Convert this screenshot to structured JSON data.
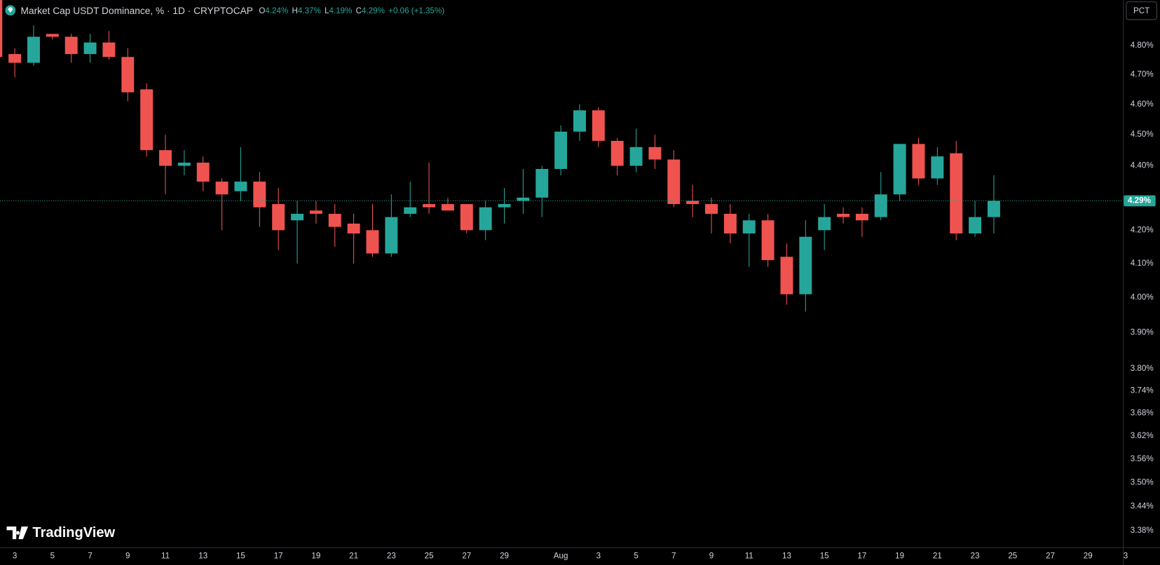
{
  "header": {
    "title": "Market Cap USDT Dominance, % · 1D · CRYPTOCAP",
    "ohlc": [
      {
        "key": "O",
        "value": "4.24%"
      },
      {
        "key": "H",
        "value": "4.37%"
      },
      {
        "key": "L",
        "value": "4.19%"
      },
      {
        "key": "C",
        "value": "4.29%"
      }
    ],
    "change": "+0.06 (+1.35%)"
  },
  "scale_button": "PCT",
  "watermark": "TradingView",
  "chart_data": {
    "type": "candlestick",
    "categories": [
      null,
      "3",
      null,
      "5",
      null,
      "7",
      null,
      "9",
      null,
      "11",
      null,
      "13",
      null,
      "15",
      null,
      "17",
      null,
      "19",
      null,
      "21",
      null,
      "23",
      null,
      "25",
      null,
      "27",
      null,
      "29",
      null,
      null,
      "Aug",
      null,
      "3",
      null,
      "5",
      null,
      "7",
      null,
      "9",
      null,
      "11",
      null,
      "13",
      null,
      "15",
      null,
      "17",
      null,
      "19",
      null,
      "21",
      null,
      "23",
      null,
      "25",
      null,
      "27",
      null,
      "29",
      null,
      "3"
    ],
    "open": [
      4.96,
      4.77,
      4.74,
      4.84,
      4.83,
      4.77,
      4.81,
      4.76,
      4.65,
      4.45,
      4.4,
      4.41,
      4.35,
      4.32,
      4.35,
      4.28,
      4.23,
      4.26,
      4.25,
      4.22,
      4.2,
      4.13,
      4.25,
      4.28,
      4.28,
      4.28,
      4.2,
      4.27,
      4.29,
      4.3,
      4.39,
      4.51,
      4.58,
      4.48,
      4.4,
      4.46,
      4.42,
      4.29,
      4.28,
      4.25,
      4.19,
      4.23,
      4.12,
      4.01,
      4.2,
      4.25,
      4.25,
      4.24,
      4.31,
      4.47,
      4.36,
      4.44,
      4.19,
      4.24,
      null,
      null,
      null,
      null,
      null,
      null,
      null
    ],
    "high": [
      4.99,
      4.79,
      4.87,
      4.84,
      4.84,
      4.84,
      4.85,
      4.79,
      4.67,
      4.5,
      4.45,
      4.43,
      4.36,
      4.46,
      4.38,
      4.33,
      4.29,
      4.29,
      4.28,
      4.25,
      4.28,
      4.31,
      4.35,
      4.41,
      4.3,
      4.28,
      4.29,
      4.33,
      4.39,
      4.4,
      4.53,
      4.6,
      4.59,
      4.49,
      4.52,
      4.5,
      4.45,
      4.34,
      4.3,
      4.28,
      4.25,
      4.25,
      4.16,
      4.23,
      4.28,
      4.27,
      4.27,
      4.38,
      4.47,
      4.49,
      4.46,
      4.48,
      4.29,
      4.37,
      null,
      null,
      null,
      null,
      null,
      null,
      null
    ],
    "low": [
      4.75,
      4.69,
      4.73,
      4.82,
      4.74,
      4.74,
      4.75,
      4.61,
      4.43,
      4.31,
      4.37,
      4.32,
      4.2,
      4.29,
      4.21,
      4.14,
      4.1,
      4.22,
      4.15,
      4.1,
      4.12,
      4.12,
      4.24,
      4.25,
      4.26,
      4.19,
      4.17,
      4.22,
      4.25,
      4.24,
      4.37,
      4.48,
      4.46,
      4.37,
      4.38,
      4.39,
      4.27,
      4.24,
      4.19,
      4.16,
      4.09,
      4.09,
      3.98,
      3.96,
      4.14,
      4.22,
      4.18,
      4.23,
      4.29,
      4.34,
      4.34,
      4.17,
      4.18,
      4.19,
      null,
      null,
      null,
      null,
      null,
      null,
      null
    ],
    "close": [
      4.76,
      4.74,
      4.83,
      4.83,
      4.77,
      4.81,
      4.76,
      4.64,
      4.45,
      4.4,
      4.41,
      4.35,
      4.31,
      4.35,
      4.27,
      4.2,
      4.25,
      4.25,
      4.21,
      4.19,
      4.13,
      4.24,
      4.27,
      4.27,
      4.26,
      4.2,
      4.27,
      4.28,
      4.3,
      4.39,
      4.51,
      4.58,
      4.48,
      4.4,
      4.46,
      4.42,
      4.28,
      4.28,
      4.25,
      4.19,
      4.23,
      4.11,
      4.01,
      4.18,
      4.24,
      4.24,
      4.23,
      4.31,
      4.47,
      4.36,
      4.43,
      4.19,
      4.24,
      4.29,
      null,
      null,
      null,
      null,
      null,
      null,
      null
    ],
    "up_color": "#26a69a",
    "down_color": "#ef5350",
    "log_scale": true,
    "grid": false,
    "ylim": [
      3.34,
      4.96
    ],
    "yticks": [
      {
        "value": 3.38,
        "label": "3.38%"
      },
      {
        "value": 3.44,
        "label": "3.44%"
      },
      {
        "value": 3.5,
        "label": "3.50%"
      },
      {
        "value": 3.56,
        "label": "3.56%"
      },
      {
        "value": 3.62,
        "label": "3.62%"
      },
      {
        "value": 3.68,
        "label": "3.68%"
      },
      {
        "value": 3.74,
        "label": "3.74%"
      },
      {
        "value": 3.8,
        "label": "3.80%"
      },
      {
        "value": 3.9,
        "label": "3.90%"
      },
      {
        "value": 4.0,
        "label": "4.00%"
      },
      {
        "value": 4.1,
        "label": "4.10%"
      },
      {
        "value": 4.2,
        "label": "4.20%"
      },
      {
        "value": 4.4,
        "label": "4.40%"
      },
      {
        "value": 4.5,
        "label": "4.50%"
      },
      {
        "value": 4.6,
        "label": "4.60%"
      },
      {
        "value": 4.7,
        "label": "4.70%"
      },
      {
        "value": 4.8,
        "label": "4.80%"
      }
    ],
    "last_price": {
      "value": 4.29,
      "label": "4.29%"
    }
  }
}
